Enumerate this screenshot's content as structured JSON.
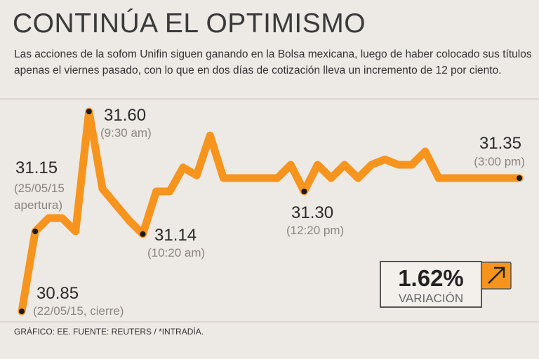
{
  "chart_data": {
    "type": "line",
    "title": "CONTINÚA EL OPTIMISMO",
    "subtitle": "Las acciones de la sofom Unifin siguen ganando en la Bolsa mexicana, luego de haber colocado sus títulos apenas el viernes pasado, con lo que en dos días de cotización lleva un incremento de 12 por ciento.",
    "color": "#f7941d",
    "values": [
      30.85,
      31.15,
      31.2,
      31.2,
      31.15,
      31.6,
      31.31,
      31.25,
      31.19,
      31.14,
      31.3,
      31.3,
      31.39,
      31.36,
      31.51,
      31.35,
      31.35,
      31.35,
      31.35,
      31.35,
      31.4,
      31.3,
      31.4,
      31.35,
      31.4,
      31.35,
      31.4,
      31.42,
      31.4,
      31.4,
      31.45,
      31.35,
      31.35,
      31.35,
      31.35,
      31.35,
      31.35,
      31.35
    ],
    "value_labels": [
      "30.85",
      "31.15",
      null,
      null,
      null,
      "31.60",
      null,
      null,
      null,
      "31.14",
      null,
      null,
      null,
      null,
      null,
      null,
      null,
      null,
      null,
      null,
      null,
      "31.30",
      null,
      null,
      null,
      null,
      null,
      null,
      null,
      null,
      null,
      null,
      null,
      null,
      null,
      null,
      null,
      "31.35"
    ],
    "notes": [
      [
        "(22/05/15, cierre)"
      ],
      [
        "(25/05/15",
        "apertura)"
      ],
      null,
      null,
      null,
      [
        "(9:30 am)"
      ],
      null,
      null,
      null,
      [
        "(10:20 am)"
      ],
      null,
      null,
      null,
      null,
      null,
      null,
      null,
      null,
      null,
      null,
      null,
      [
        "(12:20 pm)"
      ],
      null,
      null,
      null,
      null,
      null,
      null,
      null,
      null,
      null,
      null,
      null,
      null,
      null,
      null,
      null,
      [
        "(3:00 pm)"
      ]
    ],
    "variation": "1.62%",
    "variation_label": "VARIACIÓN",
    "source": "GRÁFICO: EE. FUENTE: REUTERS / *INTRADÍA."
  }
}
